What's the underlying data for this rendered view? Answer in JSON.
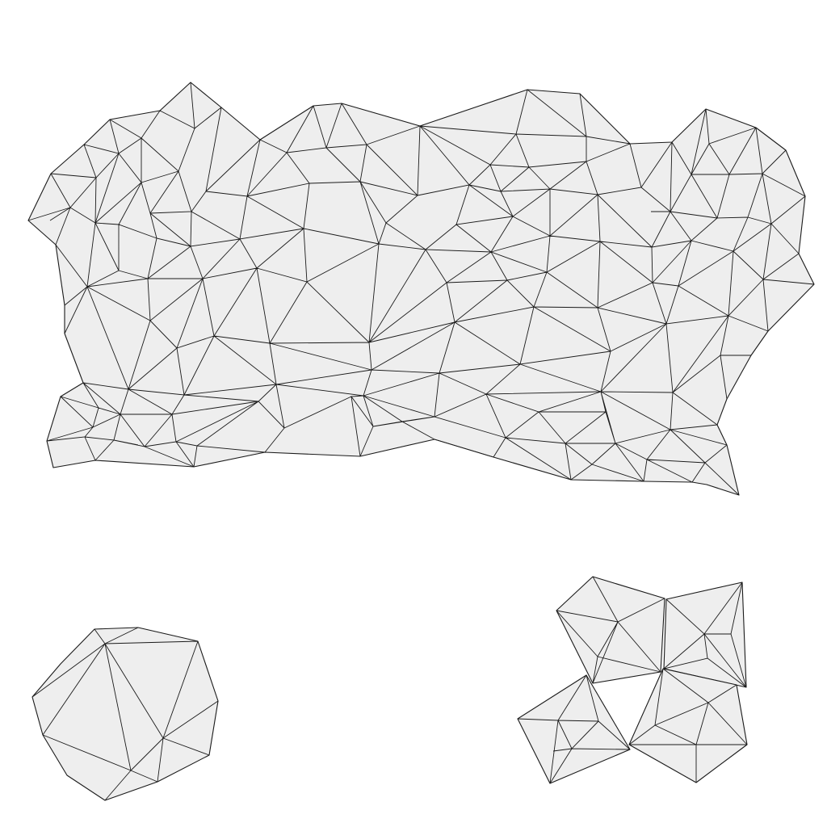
{
  "figure": {
    "description_visible_text": "",
    "colors": {
      "face": "#eeeeee",
      "edge": "#1a1a1a",
      "background": "#ffffff"
    },
    "mesh_components": [
      {
        "name": "large-triangulated-patch"
      },
      {
        "name": "octagon-triangulated-patch"
      },
      {
        "name": "quad-cluster-top-left"
      },
      {
        "name": "quad-cluster-top-right"
      },
      {
        "name": "quad-cluster-bottom-left"
      },
      {
        "name": "quad-cluster-bottom-right"
      }
    ]
  }
}
